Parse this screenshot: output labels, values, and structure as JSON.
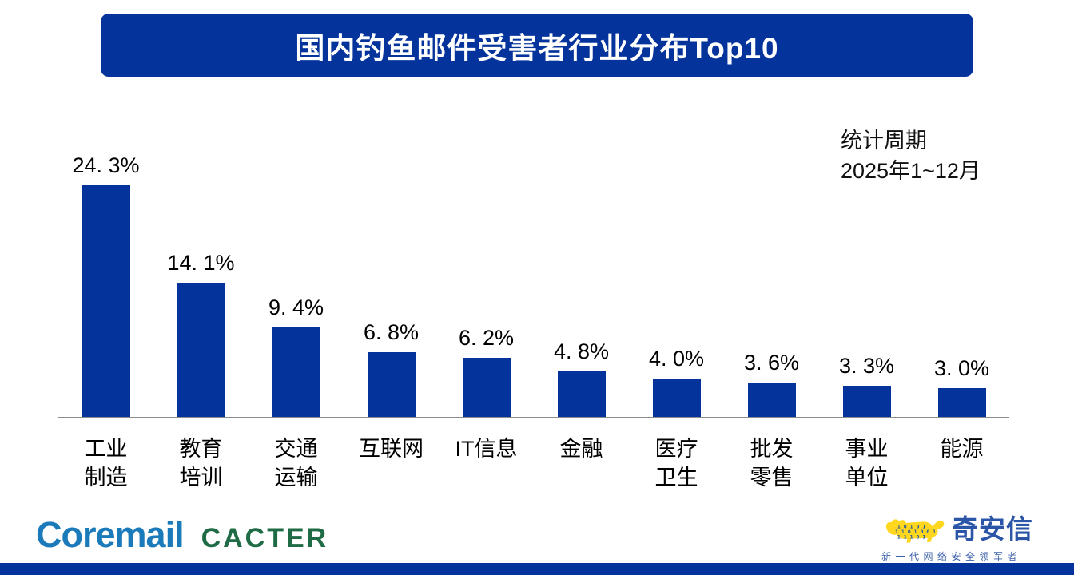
{
  "header": {
    "title": "国内钓鱼邮件受害者行业分布Top10"
  },
  "chart_data": {
    "type": "bar",
    "title": "国内钓鱼邮件受害者行业分布Top10",
    "categories": [
      "工业制造",
      "教育培训",
      "交通运输",
      "互联网",
      "IT信息",
      "金融",
      "医疗卫生",
      "批发零售",
      "事业单位",
      "能源"
    ],
    "category_display": [
      "工业\n制造",
      "教育\n培训",
      "交通\n运输",
      "互联网",
      "IT信息",
      "金融",
      "医疗\n卫生",
      "批发\n零售",
      "事业\n单位",
      "能源"
    ],
    "values": [
      24.3,
      14.1,
      9.4,
      6.8,
      6.2,
      4.8,
      4.0,
      3.6,
      3.3,
      3.0
    ],
    "value_labels": [
      "24. 3%",
      "14. 1%",
      "9. 4%",
      "6. 8%",
      "6. 2%",
      "4. 8%",
      "4. 0%",
      "3. 6%",
      "3. 3%",
      "3. 0%"
    ],
    "unit": "%",
    "annotation": {
      "line1": "统计周期",
      "line2": "2025年1~12月"
    },
    "xlabel": "",
    "ylabel": "",
    "ylim": [
      0,
      25
    ],
    "grid": false,
    "legend": false,
    "bar_color": "#04339b",
    "axis_color": "#8c8c8c"
  },
  "footer": {
    "coremail": "Coremail",
    "cacter": "CACTER",
    "qianxin": "奇安信",
    "qianxin_slogan": "新一代网络安全领军者",
    "tiger_digits_row1": "1 0 1 0 1",
    "tiger_digits_row2": "1 1 0 1 0 0 1",
    "tiger_digits_row3": "1 1 1 0 1"
  },
  "colors": {
    "primary_blue": "#04339b",
    "coremail_blue": "#1b7ab9",
    "cacter_green": "#1e6b45",
    "qianxin_blue": "#2b55a7",
    "tiger_yellow": "#ffd71f",
    "axis_gray": "#8c8c8c"
  }
}
